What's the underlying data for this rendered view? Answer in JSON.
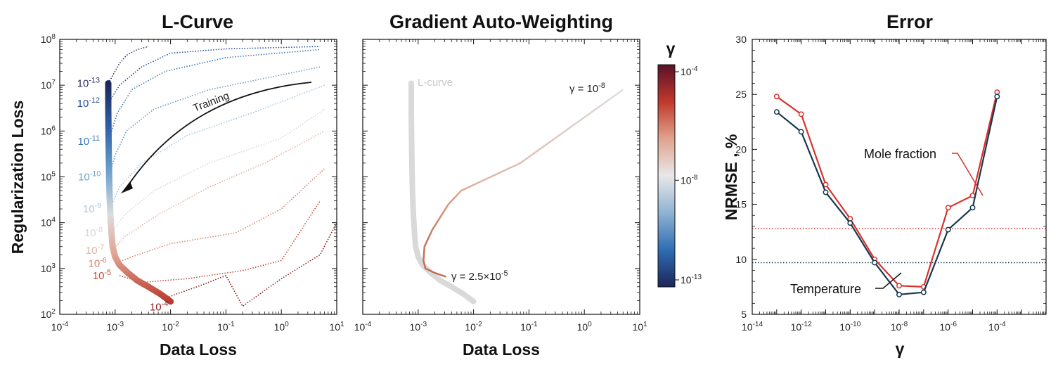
{
  "chart_data": [
    {
      "type": "line",
      "title": "L-Curve",
      "xlabel": "Data Loss",
      "ylabel": "Regularization Loss",
      "xscale": "log",
      "yscale": "log",
      "xlim": [
        0.0001,
        10
      ],
      "ylim": [
        100,
        100000000
      ],
      "x_ticks": [
        "10-4",
        "10-3",
        "10-2",
        "10-1",
        "100",
        "101"
      ],
      "y_ticks": [
        "102",
        "103",
        "104",
        "105",
        "106",
        "107",
        "108"
      ],
      "series": [
        {
          "gamma": "10-13",
          "color": "#2a2f6e",
          "x": [
            0.00075,
            0.0012,
            0.0016,
            0.0025,
            0.004
          ],
          "y": [
            11000000,
            30000000,
            45000000,
            60000000,
            70000000
          ]
        },
        {
          "gamma": "10-12",
          "color": "#2b4f9e",
          "x": [
            0.00075,
            0.0012,
            0.003,
            0.01,
            0.1,
            5
          ],
          "y": [
            4000000,
            10000000,
            25000000,
            50000000,
            62000000,
            70000000
          ]
        },
        {
          "gamma": "10-11",
          "color": "#3d79b8",
          "x": [
            0.00075,
            0.0011,
            0.002,
            0.008,
            0.1,
            5
          ],
          "y": [
            600000,
            2500000,
            8000000,
            20000000,
            40000000,
            60000000
          ]
        },
        {
          "gamma": "10-10",
          "color": "#6b9fcb",
          "x": [
            0.00078,
            0.001,
            0.0016,
            0.005,
            0.05,
            5
          ],
          "y": [
            100000,
            300000,
            1000000,
            3000000,
            8000000,
            25000000
          ]
        },
        {
          "gamma": "10-9",
          "color": "#a9c6df",
          "x": [
            0.0008,
            0.0012,
            0.003,
            0.02,
            0.3,
            6
          ],
          "y": [
            20000,
            60000,
            200000,
            800000,
            2500000,
            10000000
          ]
        },
        {
          "gamma": "10-8",
          "color": "#d7d7d7",
          "x": [
            0.00085,
            0.0015,
            0.005,
            0.05,
            1,
            6
          ],
          "y": [
            6000,
            15000,
            50000,
            200000,
            700000,
            3000000
          ]
        },
        {
          "gamma": "10-7",
          "color": "#e2b3a4",
          "x": [
            0.0009,
            0.0015,
            0.006,
            0.05,
            0.5,
            6
          ],
          "y": [
            2500,
            5000,
            15000,
            60000,
            200000,
            1000000
          ]
        },
        {
          "gamma": "10-6",
          "color": "#d8826e",
          "x": [
            0.001,
            0.002,
            0.01,
            0.15,
            1,
            6
          ],
          "y": [
            1300,
            1800,
            3500,
            6000,
            20000,
            150000
          ]
        },
        {
          "gamma": "10-5",
          "color": "#c24a3a",
          "x": [
            0.0012,
            0.003,
            0.02,
            0.2,
            1,
            5
          ],
          "y": [
            700,
            500,
            600,
            900,
            1500,
            30000
          ]
        },
        {
          "gamma": "10-4",
          "color": "#8e1d23",
          "x": [
            0.008,
            0.01,
            0.03,
            0.1,
            0.2,
            1,
            5,
            10
          ],
          "y": [
            200,
            250,
            400,
            700,
            150,
            600,
            2000,
            10000
          ]
        }
      ],
      "lcurve": {
        "x": [
          0.00075,
          0.00075,
          0.00076,
          0.00077,
          0.00079,
          0.00082,
          0.00086,
          0.0009,
          0.001,
          0.0012,
          0.0017,
          0.0025,
          0.004,
          0.0065,
          0.01
        ],
        "y": [
          11000000,
          3000000,
          800000,
          200000,
          50000,
          15000,
          6000,
          3000,
          1800,
          1200,
          800,
          550,
          400,
          280,
          190
        ]
      },
      "curve_labels": [
        "10-13",
        "10-12",
        "10-11",
        "10-10",
        "10-9",
        "10-8",
        "10-7",
        "10-6",
        "10-5",
        "10-4"
      ],
      "annotations": [
        {
          "text": "Training"
        }
      ]
    },
    {
      "type": "line",
      "title": "Gradient Auto-Weighting",
      "xlabel": "Data Loss",
      "xscale": "log",
      "yscale": "log",
      "xlim": [
        0.0001,
        10
      ],
      "ylim": [
        100,
        100000000
      ],
      "x_ticks": [
        "10-4",
        "10-3",
        "10-2",
        "10-1",
        "100",
        "101"
      ],
      "lcurve": {
        "label": "L-curve",
        "x": [
          0.00075,
          0.00075,
          0.00076,
          0.00077,
          0.00079,
          0.00082,
          0.00086,
          0.0009,
          0.001,
          0.0012,
          0.0017,
          0.0025,
          0.004,
          0.0065,
          0.01
        ],
        "y": [
          11000000,
          3000000,
          800000,
          200000,
          50000,
          15000,
          6000,
          3000,
          1800,
          1200,
          800,
          550,
          400,
          280,
          190
        ]
      },
      "path": {
        "x": [
          0.0032,
          0.002,
          0.00135,
          0.00125,
          0.0013,
          0.0018,
          0.0035,
          0.006,
          0.07,
          5
        ],
        "y": [
          660,
          800,
          1000,
          1500,
          3000,
          7000,
          25000,
          50000,
          200000,
          8000000
        ]
      },
      "annotations": [
        {
          "text": "γ = 10-8"
        },
        {
          "text": "γ = 2.5×10-5"
        }
      ],
      "colorbar": {
        "label": "γ",
        "tick_labels": [
          "10-4",
          "10-8",
          "10-13"
        ],
        "colors": [
          "#5a1128",
          "#c0392b",
          "#e0a38e",
          "#e8e8e8",
          "#8fb3d2",
          "#2f6db3",
          "#1c2657"
        ]
      }
    },
    {
      "type": "line",
      "title": "Error",
      "xlabel": "γ",
      "ylabel": "NRMSE , %",
      "xscale": "log",
      "xlim": [
        1e-14,
        0.01
      ],
      "ylim": [
        5,
        30
      ],
      "x_ticks": [
        "10-14",
        "10-12",
        "10-10",
        "10-8",
        "10-6",
        "10-4"
      ],
      "y_ticks": [
        "5",
        "10",
        "15",
        "20",
        "25",
        "30"
      ],
      "x": [
        1e-13,
        1e-12,
        1e-11,
        1e-10,
        1e-09,
        1e-08,
        1e-07,
        1e-06,
        1e-05,
        0.0001
      ],
      "series": [
        {
          "name": "Mole fraction",
          "color": "#d9322e",
          "values": [
            24.8,
            23.2,
            16.8,
            13.7,
            10.0,
            7.6,
            7.5,
            14.7,
            15.8,
            25.2
          ],
          "baseline": 12.8
        },
        {
          "name": "Temperature",
          "color": "#16384f",
          "values": [
            23.4,
            21.6,
            16.1,
            13.3,
            9.7,
            6.8,
            7.0,
            12.7,
            14.7,
            24.8
          ],
          "baseline": 9.7
        }
      ]
    }
  ]
}
